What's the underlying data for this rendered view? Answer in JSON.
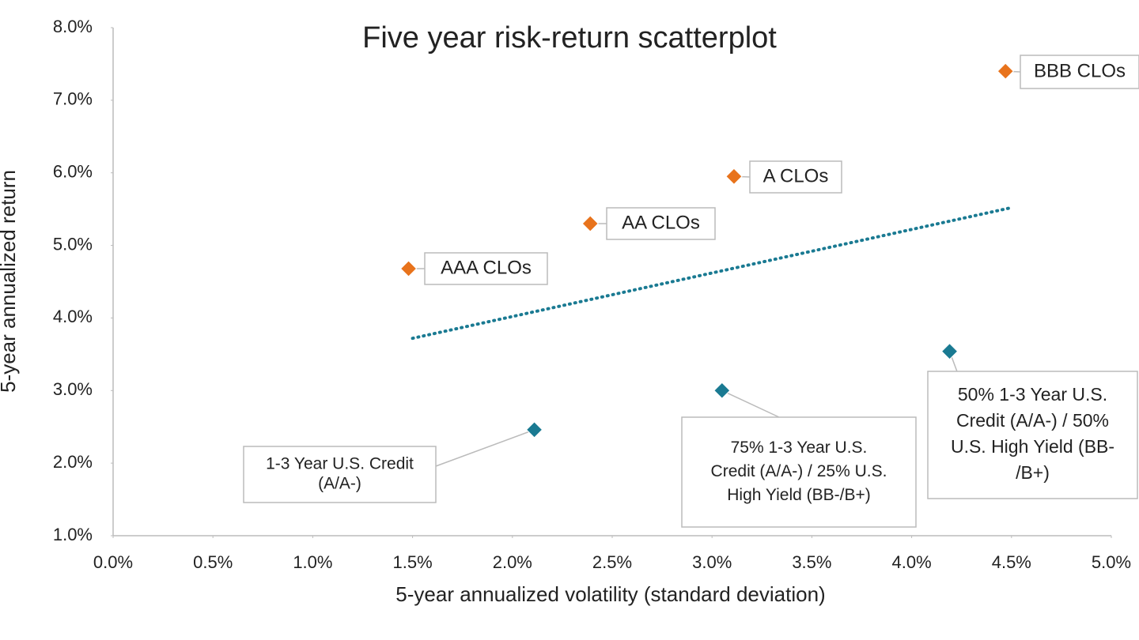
{
  "chart_data": {
    "type": "scatter",
    "title": "Five year risk-return scatterplot",
    "x_label": "5-year annualized volatility (standard deviation)",
    "y_label": "5-year annualized return",
    "xlim": [
      0,
      5
    ],
    "ylim": [
      1,
      8
    ],
    "xticks": [
      {
        "value": 0,
        "label": "0.0%"
      },
      {
        "value": 0.5,
        "label": "0.5%"
      },
      {
        "value": 1,
        "label": "1.0%"
      },
      {
        "value": 1.5,
        "label": "1.5%"
      },
      {
        "value": 2,
        "label": "2.0%"
      },
      {
        "value": 2.5,
        "label": "2.5%"
      },
      {
        "value": 3,
        "label": "3.0%"
      },
      {
        "value": 3.5,
        "label": "3.5%"
      },
      {
        "value": 4,
        "label": "4.0%"
      },
      {
        "value": 4.5,
        "label": "4.5%"
      },
      {
        "value": 5,
        "label": "5.0%"
      }
    ],
    "yticks": [
      {
        "value": 1,
        "label": "1.0%"
      },
      {
        "value": 2,
        "label": "2.0%"
      },
      {
        "value": 3,
        "label": "3.0%"
      },
      {
        "value": 4,
        "label": "4.0%"
      },
      {
        "value": 5,
        "label": "5.0%"
      },
      {
        "value": 6,
        "label": "6.0%"
      },
      {
        "value": 7,
        "label": "7.0%"
      },
      {
        "value": 8,
        "label": "8.0%"
      }
    ],
    "grid": false,
    "series": [
      {
        "color": "#e8731c",
        "x": [
          1.48,
          2.39,
          3.11,
          4.47
        ],
        "y": [
          4.68,
          5.3,
          5.95,
          7.4
        ],
        "point_labels": [
          [
            "AAA CLOs"
          ],
          [
            "AA CLOs"
          ],
          [
            "A CLOs"
          ],
          [
            "BBB CLOs"
          ]
        ]
      },
      {
        "color": "#1a7a92",
        "x": [
          2.11,
          3.05,
          4.19
        ],
        "y": [
          2.46,
          3.0,
          3.54
        ],
        "point_labels": [
          [
            "1-3 Year U.S. Credit",
            "(A/A-)"
          ],
          [
            "75% 1-3 Year U.S.",
            "Credit (A/A-) / 25% U.S.",
            "High Yield (BB-/B+)"
          ],
          [
            "50% 1-3 Year U.S.",
            "Credit (A/A-) / 50%",
            "U.S. High Yield (BB-",
            "/B+)"
          ]
        ]
      }
    ],
    "trendline": {
      "color": "#1a7a92",
      "style": "dotted",
      "x": [
        1.5,
        4.5
      ],
      "y": [
        3.72,
        5.52
      ]
    }
  }
}
